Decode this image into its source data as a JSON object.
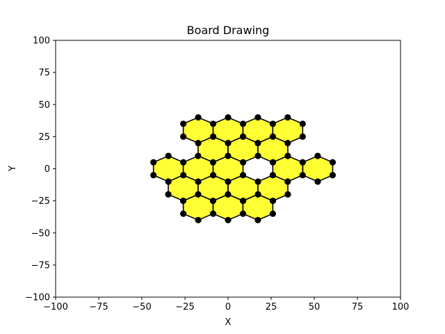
{
  "chart_data": {
    "type": "scatter",
    "title": "Board Drawing",
    "xlabel": "X",
    "ylabel": "Y",
    "xlim": [
      -100,
      100
    ],
    "ylim": [
      -100,
      100
    ],
    "xticks": [
      -100,
      -75,
      -50,
      -25,
      0,
      25,
      50,
      75,
      100
    ],
    "yticks": [
      -100,
      -75,
      -50,
      -25,
      0,
      25,
      50,
      75,
      100
    ],
    "xtick_labels": [
      "−100",
      "−75",
      "−50",
      "−25",
      "0",
      "25",
      "50",
      "75",
      "100"
    ],
    "ytick_labels": [
      "−100",
      "−75",
      "−50",
      "−25",
      "0",
      "25",
      "50",
      "75",
      "100"
    ],
    "grid": false,
    "hexagon_radius": 10,
    "hexagon_centers": [
      [
        -17.3,
        30
      ],
      [
        0,
        30
      ],
      [
        17.3,
        30
      ],
      [
        34.6,
        30
      ],
      [
        -8.7,
        15
      ],
      [
        8.7,
        15
      ],
      [
        26,
        15
      ],
      [
        -34.6,
        0
      ],
      [
        -17.3,
        0
      ],
      [
        0,
        0
      ],
      [
        34.6,
        0
      ],
      [
        52,
        0
      ],
      [
        -26,
        -15
      ],
      [
        -8.7,
        -15
      ],
      [
        8.7,
        -15
      ],
      [
        26,
        -15
      ],
      [
        -17.3,
        -30
      ],
      [
        0,
        -30
      ],
      [
        17.3,
        -30
      ]
    ],
    "colors": {
      "hex_fill": "#ffff33",
      "hex_edge": "#000000",
      "vertex": "#000000"
    }
  }
}
